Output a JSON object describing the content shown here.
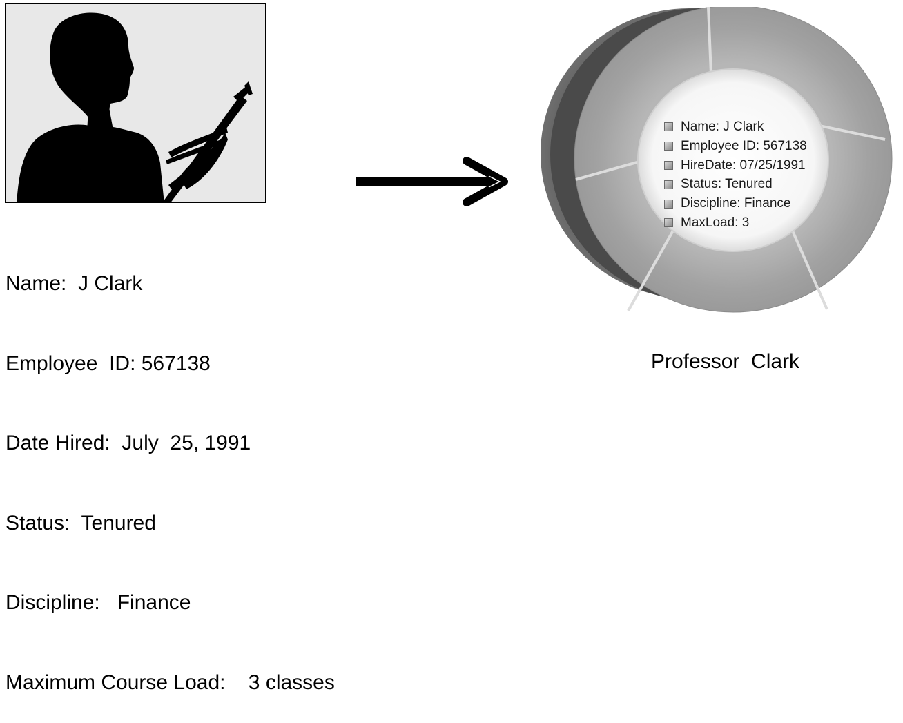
{
  "attributes": [
    "Name:  J Clark",
    "Employee  ID: 567138",
    "Date Hired:  July  25, 1991",
    "Status:  Tenured",
    "Discipline:   Finance",
    "Maximum Course Load:    3 classes"
  ],
  "object_fields": [
    "Name: J Clark",
    "Employee ID: 567138",
    "HireDate: 07/25/1991",
    "Status: Tenured",
    "Discipline: Finance",
    "MaxLoad: 3"
  ],
  "caption": "Professor  Clark",
  "colors": {
    "photo_background": "#e8e8e8",
    "silhouette": "#000000",
    "ring_face": "#a5a5a5",
    "ring_side": "#555555",
    "arrow": "#000000"
  },
  "icons": {
    "photo": "woman-silhouette-with-rifle-icon",
    "arrow": "right-arrow-icon",
    "object": "object-ring-icon",
    "bullet": "square-bullet-icon"
  }
}
